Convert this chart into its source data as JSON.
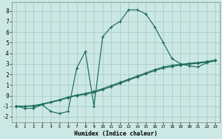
{
  "xlabel": "Humidex (Indice chaleur)",
  "ylabel": "",
  "bg_color": "#cce8e4",
  "grid_color": "#aacfca",
  "line_color": "#1a6b5a",
  "marker": "+",
  "xlim": [
    -0.5,
    23.5
  ],
  "ylim": [
    -2.5,
    8.8
  ],
  "xticks": [
    0,
    1,
    2,
    3,
    4,
    5,
    6,
    7,
    8,
    9,
    10,
    11,
    12,
    13,
    14,
    15,
    16,
    17,
    18,
    19,
    20,
    21,
    22,
    23
  ],
  "yticks": [
    -2,
    -1,
    0,
    1,
    2,
    3,
    4,
    5,
    6,
    7,
    8
  ],
  "line1_x": [
    0,
    1,
    2,
    3,
    4,
    5,
    6,
    7,
    8,
    9,
    10,
    11,
    12,
    13,
    14,
    15,
    16,
    17,
    18,
    19,
    20,
    21,
    22,
    23
  ],
  "line1_y": [
    -1.0,
    -1.2,
    -1.2,
    -0.85,
    -1.5,
    -1.7,
    -1.5,
    2.6,
    4.15,
    -1.0,
    5.55,
    6.5,
    7.0,
    8.1,
    8.1,
    7.7,
    6.5,
    5.0,
    3.5,
    3.0,
    2.8,
    2.7,
    3.1,
    3.3
  ],
  "line2_x": [
    0,
    1,
    2,
    3,
    4,
    5,
    6,
    7,
    8,
    9,
    10,
    11,
    12,
    13,
    14,
    15,
    16,
    17,
    18,
    19,
    20,
    21,
    22,
    23
  ],
  "line2_y": [
    -1.0,
    -1.0,
    -1.0,
    -0.85,
    -0.65,
    -0.45,
    -0.2,
    0.0,
    0.1,
    0.3,
    0.55,
    0.85,
    1.15,
    1.45,
    1.75,
    2.05,
    2.35,
    2.6,
    2.75,
    2.88,
    2.98,
    3.05,
    3.15,
    3.3
  ],
  "line3_x": [
    0,
    1,
    2,
    3,
    4,
    5,
    6,
    7,
    8,
    9,
    10,
    11,
    12,
    13,
    14,
    15,
    16,
    17,
    18,
    19,
    20,
    21,
    22,
    23
  ],
  "line3_y": [
    -1.0,
    -1.0,
    -0.95,
    -0.8,
    -0.6,
    -0.4,
    -0.15,
    0.05,
    0.2,
    0.4,
    0.65,
    0.95,
    1.25,
    1.55,
    1.85,
    2.15,
    2.45,
    2.7,
    2.85,
    2.95,
    3.05,
    3.12,
    3.22,
    3.35
  ]
}
